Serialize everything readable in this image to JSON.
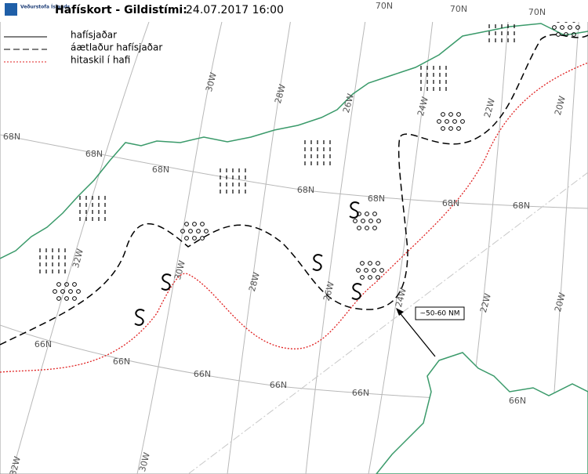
{
  "header": {
    "logo": "Veðurstofa Íslands",
    "title": "Hafískort - Gildistími:",
    "datetime": "24.07.2017 16:00"
  },
  "legend": [
    {
      "label": "hafísjaðar"
    },
    {
      "label": "áætlaður hafísjaðar"
    },
    {
      "label": "hitaskil í hafi"
    }
  ],
  "grid_labels": [
    "70N",
    "70N",
    "70N",
    "30W",
    "28W",
    "26W",
    "24W",
    "22W",
    "20W",
    "68N",
    "68N",
    "68N",
    "68N",
    "68N",
    "68N",
    "68N",
    "32W",
    "30W",
    "28W",
    "26W",
    "24W",
    "22W",
    "20W",
    "66N",
    "66N",
    "66N",
    "66N",
    "66N",
    "66N",
    "32W",
    "30W"
  ],
  "annotation": "~50-60 NM"
}
